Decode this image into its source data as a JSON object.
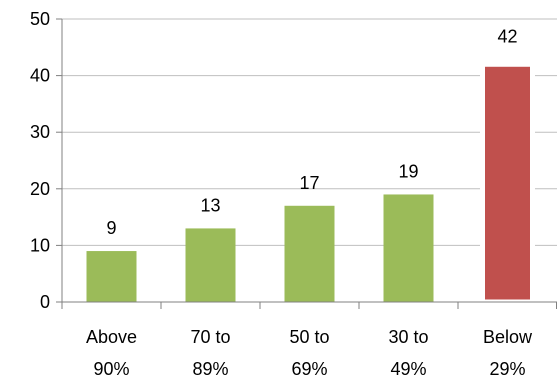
{
  "chart_data": {
    "type": "bar",
    "categories": [
      [
        "Above",
        "90%"
      ],
      [
        "70 to",
        "89%"
      ],
      [
        "50 to",
        "69%"
      ],
      [
        "30 to",
        "49%"
      ],
      [
        "Below",
        "29%"
      ]
    ],
    "values": [
      9,
      13,
      17,
      19,
      42
    ],
    "data_labels": [
      "9",
      "13",
      "17",
      "19",
      "42"
    ],
    "bar_colors": [
      "#9BBB59",
      "#9BBB59",
      "#9BBB59",
      "#9BBB59",
      "#C0504D"
    ],
    "highlight_border_color": "#FFFFFF",
    "ylim": [
      0,
      50
    ],
    "yticks": [
      0,
      10,
      20,
      30,
      40,
      50
    ],
    "ytick_labels": [
      "0",
      "10",
      "20",
      "30",
      "40",
      "50"
    ],
    "grid": true,
    "gridline_color": "#BFBFBF",
    "axis_color": "#808080",
    "legend": false
  }
}
